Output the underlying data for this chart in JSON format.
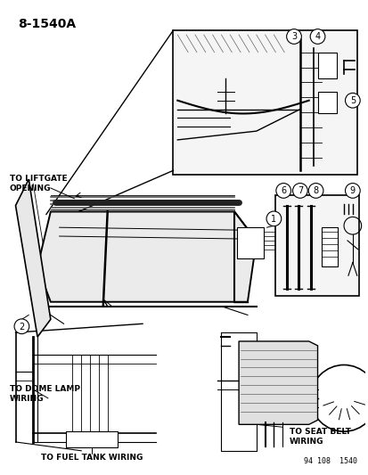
{
  "title": "8-1540A",
  "bg": "#ffffff",
  "lc": "#000000",
  "gray": "#888888",
  "lgray": "#cccccc",
  "stamp": "94 108  1540",
  "fig_w": 4.14,
  "fig_h": 5.33,
  "dpi": 100,
  "labels": {
    "liftgate": "TO LIFTGATE\nOPENING",
    "dome": "TO DOME LAMP\nWIRING",
    "fuel": "TO FUEL TANK WIRING",
    "seatbelt": "TO SEAT BELT\nWIRING"
  }
}
